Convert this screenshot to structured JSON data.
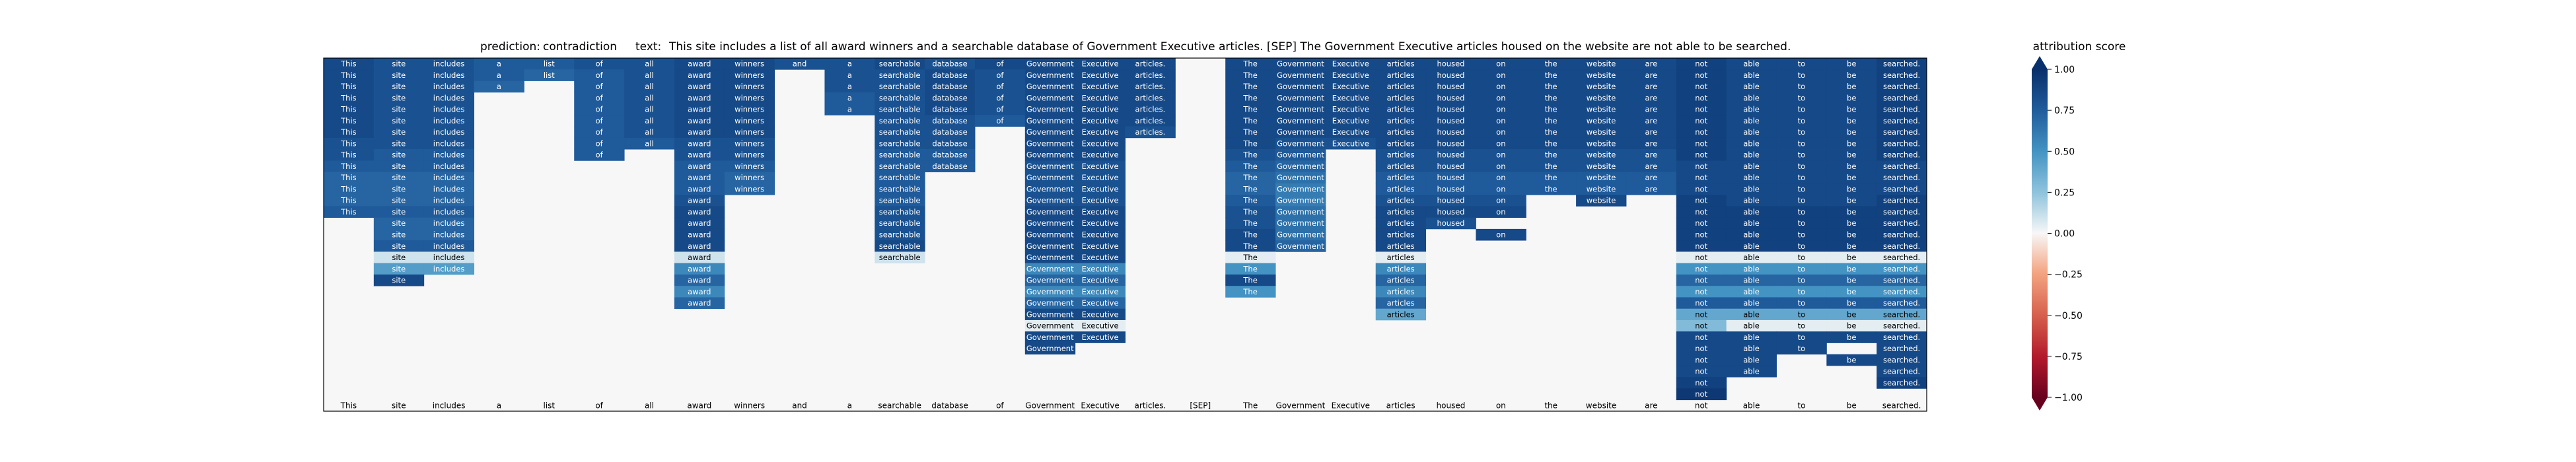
{
  "header": {
    "prediction_label": "prediction:",
    "prediction_value": "contradiction",
    "text_label": "text:",
    "text_value": "This site includes a list of all award winners and a searchable database of Government Executive articles. [SEP] The Government Executive articles housed on the website are not able to be searched."
  },
  "colorbar": {
    "title": "attribution score",
    "ticks": [
      "1.00",
      "0.75",
      "0.50",
      "0.25",
      "0.00",
      "−0.25",
      "−0.50",
      "−0.75",
      "−1.00"
    ],
    "colors": {
      "pos_strong": "#08306b",
      "pos_mid": "#4393c3",
      "neutral": "#f7f7f7",
      "neg_mid": "#f4a582",
      "neg_strong": "#67001f"
    }
  },
  "chart_data": {
    "type": "heatmap",
    "tokens": [
      "This",
      "site",
      "includes",
      "a",
      "list",
      "of",
      "all",
      "award",
      "winners",
      "and",
      "a",
      "searchable",
      "database",
      "of",
      "Government",
      "Executive",
      "articles.",
      "[SEP]",
      "The",
      "Government",
      "Executive",
      "articles",
      "housed",
      "on",
      "the",
      "website",
      "are",
      "not",
      "able",
      "to",
      "be",
      "searched."
    ],
    "rows": [
      {
        "span": [
          0,
          31
        ],
        "values": [
          0.85,
          0.8,
          0.8,
          0.75,
          0.75,
          0.8,
          0.8,
          0.85,
          0.85,
          0.8,
          0.8,
          0.85,
          0.8,
          0.85,
          0.85,
          0.85,
          0.85,
          0.0,
          0.85,
          0.85,
          0.85,
          0.85,
          0.85,
          0.85,
          0.85,
          0.85,
          0.85,
          0.9,
          0.85,
          0.85,
          0.85,
          0.9
        ]
      },
      {
        "span": [
          0,
          31
        ],
        "values": [
          0.85,
          0.8,
          0.8,
          0.75,
          0.7,
          0.75,
          0.8,
          0.85,
          0.85,
          0.0,
          0.8,
          0.8,
          0.85,
          0.8,
          0.85,
          0.85,
          0.85,
          0.0,
          0.85,
          0.85,
          0.85,
          0.85,
          0.85,
          0.85,
          0.85,
          0.85,
          0.85,
          0.9,
          0.85,
          0.85,
          0.85,
          0.9
        ]
      },
      {
        "span": [
          0,
          31
        ],
        "values": [
          0.85,
          0.8,
          0.8,
          0.7,
          0.0,
          0.75,
          0.8,
          0.85,
          0.85,
          0.0,
          0.8,
          0.8,
          0.85,
          0.8,
          0.85,
          0.85,
          0.85,
          0.0,
          0.85,
          0.85,
          0.85,
          0.85,
          0.85,
          0.85,
          0.85,
          0.85,
          0.85,
          0.9,
          0.85,
          0.85,
          0.85,
          0.9
        ]
      },
      {
        "span": [
          0,
          31
        ],
        "values": [
          0.85,
          0.8,
          0.8,
          0.0,
          0.0,
          0.75,
          0.8,
          0.85,
          0.85,
          0.0,
          0.75,
          0.8,
          0.85,
          0.8,
          0.85,
          0.85,
          0.85,
          0.0,
          0.85,
          0.85,
          0.85,
          0.85,
          0.85,
          0.85,
          0.85,
          0.85,
          0.85,
          0.9,
          0.85,
          0.85,
          0.85,
          0.9
        ]
      },
      {
        "span": [
          0,
          31
        ],
        "values": [
          0.85,
          0.8,
          0.8,
          0.0,
          0.0,
          0.75,
          0.8,
          0.85,
          0.85,
          0.0,
          0.75,
          0.8,
          0.85,
          0.8,
          0.85,
          0.85,
          0.85,
          0.0,
          0.85,
          0.85,
          0.85,
          0.85,
          0.85,
          0.85,
          0.85,
          0.85,
          0.85,
          0.9,
          0.85,
          0.85,
          0.85,
          0.9
        ]
      },
      {
        "span": [
          0,
          31
        ],
        "values": [
          0.85,
          0.8,
          0.8,
          0.0,
          0.0,
          0.75,
          0.8,
          0.85,
          0.85,
          0.0,
          0.0,
          0.8,
          0.8,
          0.75,
          0.85,
          0.85,
          0.85,
          0.0,
          0.85,
          0.85,
          0.85,
          0.85,
          0.85,
          0.85,
          0.85,
          0.85,
          0.85,
          0.9,
          0.85,
          0.85,
          0.85,
          0.9
        ]
      },
      {
        "span": [
          0,
          31
        ],
        "values": [
          0.85,
          0.8,
          0.8,
          0.0,
          0.0,
          0.75,
          0.8,
          0.85,
          0.85,
          0.0,
          0.0,
          0.8,
          0.8,
          0.0,
          0.85,
          0.85,
          0.8,
          0.0,
          0.85,
          0.85,
          0.85,
          0.85,
          0.85,
          0.85,
          0.85,
          0.85,
          0.85,
          0.9,
          0.85,
          0.85,
          0.85,
          0.9
        ]
      },
      {
        "span": [
          0,
          31
        ],
        "values": [
          0.8,
          0.8,
          0.8,
          0.0,
          0.0,
          0.75,
          0.75,
          0.8,
          0.8,
          0.0,
          0.0,
          0.8,
          0.8,
          0.0,
          0.85,
          0.85,
          0.0,
          0.0,
          0.85,
          0.8,
          0.8,
          0.85,
          0.85,
          0.85,
          0.85,
          0.85,
          0.85,
          0.9,
          0.85,
          0.85,
          0.85,
          0.9
        ]
      },
      {
        "span": [
          0,
          31
        ],
        "values": [
          0.8,
          0.75,
          0.75,
          0.0,
          0.0,
          0.75,
          0.0,
          0.8,
          0.8,
          0.0,
          0.0,
          0.75,
          0.75,
          0.0,
          0.85,
          0.85,
          0.0,
          0.0,
          0.8,
          0.75,
          0.0,
          0.8,
          0.8,
          0.8,
          0.8,
          0.8,
          0.8,
          0.9,
          0.85,
          0.85,
          0.85,
          0.9
        ]
      },
      {
        "span": [
          0,
          31
        ],
        "values": [
          0.75,
          0.75,
          0.75,
          0.0,
          0.0,
          0.0,
          0.0,
          0.75,
          0.75,
          0.0,
          0.0,
          0.75,
          0.75,
          0.0,
          0.8,
          0.8,
          0.0,
          0.0,
          0.75,
          0.7,
          0.0,
          0.8,
          0.8,
          0.8,
          0.8,
          0.8,
          0.8,
          0.85,
          0.85,
          0.85,
          0.85,
          0.85
        ]
      },
      {
        "span": [
          0,
          31
        ],
        "values": [
          0.7,
          0.7,
          0.7,
          0.0,
          0.0,
          0.0,
          0.0,
          0.75,
          0.7,
          0.0,
          0.0,
          0.75,
          0.0,
          0.0,
          0.8,
          0.8,
          0.0,
          0.0,
          0.7,
          0.65,
          0.0,
          0.75,
          0.75,
          0.75,
          0.75,
          0.75,
          0.75,
          0.85,
          0.85,
          0.85,
          0.85,
          0.85
        ]
      },
      {
        "span": [
          0,
          31
        ],
        "values": [
          0.7,
          0.7,
          0.7,
          0.0,
          0.0,
          0.0,
          0.0,
          0.75,
          0.7,
          0.0,
          0.0,
          0.75,
          0.0,
          0.0,
          0.8,
          0.8,
          0.0,
          0.0,
          0.7,
          0.6,
          0.0,
          0.75,
          0.75,
          0.75,
          0.75,
          0.75,
          0.75,
          0.85,
          0.85,
          0.85,
          0.85,
          0.85
        ]
      },
      {
        "span": [
          0,
          31
        ],
        "values": [
          0.7,
          0.7,
          0.7,
          0.0,
          0.0,
          0.0,
          0.0,
          0.8,
          0.0,
          0.0,
          0.0,
          0.75,
          0.0,
          0.0,
          0.8,
          0.8,
          0.0,
          0.0,
          0.75,
          0.6,
          0.0,
          0.8,
          0.8,
          0.8,
          0.0,
          0.85,
          0.0,
          0.9,
          0.85,
          0.85,
          0.85,
          0.9
        ]
      },
      {
        "span": [
          0,
          31
        ],
        "values": [
          0.75,
          0.75,
          0.75,
          0.0,
          0.0,
          0.0,
          0.0,
          0.85,
          0.0,
          0.0,
          0.0,
          0.8,
          0.0,
          0.0,
          0.85,
          0.85,
          0.0,
          0.0,
          0.8,
          0.65,
          0.0,
          0.85,
          0.85,
          0.85,
          0.0,
          0.0,
          0.0,
          0.9,
          0.9,
          0.9,
          0.9,
          0.9
        ]
      },
      {
        "span": [
          1,
          31
        ],
        "values": [
          0.0,
          0.7,
          0.7,
          0.0,
          0.0,
          0.0,
          0.0,
          0.85,
          0.0,
          0.0,
          0.0,
          0.8,
          0.0,
          0.0,
          0.85,
          0.85,
          0.0,
          0.0,
          0.8,
          0.65,
          0.0,
          0.85,
          0.8,
          0.0,
          0.0,
          0.0,
          0.0,
          0.9,
          0.9,
          0.9,
          0.9,
          0.9
        ]
      },
      {
        "span": [
          1,
          31
        ],
        "values": [
          0.0,
          0.7,
          0.7,
          0.0,
          0.0,
          0.0,
          0.0,
          0.85,
          0.0,
          0.0,
          0.0,
          0.8,
          0.0,
          0.0,
          0.85,
          0.85,
          0.0,
          0.0,
          0.85,
          0.65,
          0.0,
          0.85,
          0.0,
          0.85,
          0.0,
          0.0,
          0.0,
          0.9,
          0.9,
          0.9,
          0.9,
          0.9
        ]
      },
      {
        "span": [
          1,
          31
        ],
        "values": [
          0.0,
          0.75,
          0.75,
          0.0,
          0.0,
          0.0,
          0.0,
          0.85,
          0.0,
          0.0,
          0.0,
          0.85,
          0.0,
          0.0,
          0.85,
          0.85,
          0.0,
          0.0,
          0.85,
          0.7,
          0.0,
          0.85,
          0.0,
          0.0,
          0.0,
          0.0,
          0.0,
          0.9,
          0.9,
          0.9,
          0.9,
          0.9
        ]
      },
      {
        "span": [
          1,
          31
        ],
        "values": [
          0.0,
          0.1,
          0.1,
          0.0,
          0.0,
          0.0,
          0.0,
          0.1,
          0.0,
          0.0,
          0.0,
          0.1,
          0.0,
          0.0,
          0.85,
          0.85,
          0.0,
          0.0,
          0.05,
          0.0,
          0.0,
          0.05,
          0.0,
          0.0,
          0.0,
          0.0,
          0.0,
          0.05,
          0.05,
          0.05,
          0.05,
          0.05
        ]
      },
      {
        "span": [
          1,
          31
        ],
        "values": [
          0.0,
          0.45,
          0.45,
          0.0,
          0.0,
          0.0,
          0.0,
          0.55,
          0.0,
          0.0,
          0.0,
          0.0,
          0.0,
          0.0,
          0.55,
          0.55,
          0.0,
          0.0,
          0.5,
          0.0,
          0.0,
          0.55,
          0.0,
          0.0,
          0.0,
          0.0,
          0.0,
          0.5,
          0.5,
          0.5,
          0.5,
          0.5
        ]
      },
      {
        "span": [
          1,
          31
        ],
        "values": [
          0.0,
          0.85,
          0.0,
          0.0,
          0.0,
          0.0,
          0.0,
          0.7,
          0.0,
          0.0,
          0.0,
          0.0,
          0.0,
          0.0,
          0.7,
          0.7,
          0.0,
          0.0,
          0.85,
          0.0,
          0.0,
          0.7,
          0.0,
          0.0,
          0.0,
          0.0,
          0.0,
          0.7,
          0.7,
          0.7,
          0.7,
          0.7
        ]
      },
      {
        "span": [
          7,
          31
        ],
        "values": [
          0.0,
          0.0,
          0.0,
          0.0,
          0.0,
          0.0,
          0.0,
          0.55,
          0.0,
          0.0,
          0.0,
          0.0,
          0.0,
          0.0,
          0.55,
          0.55,
          0.0,
          0.0,
          0.5,
          0.0,
          0.0,
          0.55,
          0.0,
          0.0,
          0.0,
          0.0,
          0.0,
          0.5,
          0.5,
          0.5,
          0.5,
          0.5
        ]
      },
      {
        "span": [
          7,
          31
        ],
        "values": [
          0.0,
          0.0,
          0.0,
          0.0,
          0.0,
          0.0,
          0.0,
          0.7,
          0.0,
          0.0,
          0.0,
          0.0,
          0.0,
          0.0,
          0.7,
          0.7,
          0.0,
          0.0,
          0.0,
          0.0,
          0.0,
          0.7,
          0.0,
          0.0,
          0.0,
          0.0,
          0.0,
          0.75,
          0.75,
          0.75,
          0.75,
          0.75
        ]
      },
      {
        "span": [
          14,
          31
        ],
        "values": [
          0.0,
          0.0,
          0.0,
          0.0,
          0.0,
          0.0,
          0.0,
          0.0,
          0.0,
          0.0,
          0.0,
          0.0,
          0.0,
          0.0,
          0.85,
          0.85,
          0.0,
          0.0,
          0.0,
          0.0,
          0.0,
          0.4,
          0.0,
          0.0,
          0.0,
          0.0,
          0.0,
          0.4,
          0.4,
          0.4,
          0.4,
          0.4
        ]
      },
      {
        "span": [
          14,
          31
        ],
        "values": [
          0.0,
          0.0,
          0.0,
          0.0,
          0.0,
          0.0,
          0.0,
          0.0,
          0.0,
          0.0,
          0.0,
          0.0,
          0.0,
          0.0,
          0.05,
          0.05,
          0.0,
          0.0,
          0.0,
          0.0,
          0.0,
          0.0,
          0.0,
          0.0,
          0.0,
          0.0,
          0.0,
          0.3,
          0.05,
          0.05,
          0.05,
          0.05
        ]
      },
      {
        "span": [
          14,
          31
        ],
        "values": [
          0.0,
          0.0,
          0.0,
          0.0,
          0.0,
          0.0,
          0.0,
          0.0,
          0.0,
          0.0,
          0.0,
          0.0,
          0.0,
          0.0,
          0.85,
          0.85,
          0.0,
          0.0,
          0.0,
          0.0,
          0.0,
          0.0,
          0.0,
          0.0,
          0.0,
          0.0,
          0.0,
          0.85,
          0.85,
          0.85,
          0.85,
          0.85
        ]
      },
      {
        "span": [
          14,
          31
        ],
        "values": [
          0.0,
          0.0,
          0.0,
          0.0,
          0.0,
          0.0,
          0.0,
          0.0,
          0.0,
          0.0,
          0.0,
          0.0,
          0.0,
          0.0,
          0.85,
          0.0,
          0.0,
          0.0,
          0.0,
          0.0,
          0.0,
          0.0,
          0.0,
          0.0,
          0.0,
          0.0,
          0.0,
          0.85,
          0.85,
          0.85,
          0.0,
          0.85
        ]
      },
      {
        "span": [
          27,
          31
        ],
        "values": [
          0.0,
          0.0,
          0.0,
          0.0,
          0.0,
          0.0,
          0.0,
          0.0,
          0.0,
          0.0,
          0.0,
          0.0,
          0.0,
          0.0,
          0.0,
          0.0,
          0.0,
          0.0,
          0.0,
          0.0,
          0.0,
          0.0,
          0.0,
          0.0,
          0.0,
          0.0,
          0.0,
          0.85,
          0.85,
          0.0,
          0.85,
          0.85
        ]
      },
      {
        "span": [
          27,
          31
        ],
        "values": [
          0.0,
          0.0,
          0.0,
          0.0,
          0.0,
          0.0,
          0.0,
          0.0,
          0.0,
          0.0,
          0.0,
          0.0,
          0.0,
          0.0,
          0.0,
          0.0,
          0.0,
          0.0,
          0.0,
          0.0,
          0.0,
          0.0,
          0.0,
          0.0,
          0.0,
          0.0,
          0.0,
          0.85,
          0.85,
          0.0,
          0.0,
          0.85
        ]
      },
      {
        "span": [
          27,
          31
        ],
        "values": [
          0.0,
          0.0,
          0.0,
          0.0,
          0.0,
          0.0,
          0.0,
          0.0,
          0.0,
          0.0,
          0.0,
          0.0,
          0.0,
          0.0,
          0.0,
          0.0,
          0.0,
          0.0,
          0.0,
          0.0,
          0.0,
          0.0,
          0.0,
          0.0,
          0.0,
          0.0,
          0.0,
          0.9,
          0.0,
          0.0,
          0.0,
          0.9
        ]
      },
      {
        "span": [
          27,
          31
        ],
        "values": [
          0.0,
          0.0,
          0.0,
          0.0,
          0.0,
          0.0,
          0.0,
          0.0,
          0.0,
          0.0,
          0.0,
          0.0,
          0.0,
          0.0,
          0.0,
          0.0,
          0.0,
          0.0,
          0.0,
          0.0,
          0.0,
          0.0,
          0.0,
          0.0,
          0.0,
          0.0,
          0.0,
          0.95,
          0.0,
          0.0,
          0.0,
          0.0
        ]
      }
    ],
    "xlabel": "",
    "ylabel": "",
    "vlim": [
      -1,
      1
    ],
    "legend_position": "right"
  }
}
